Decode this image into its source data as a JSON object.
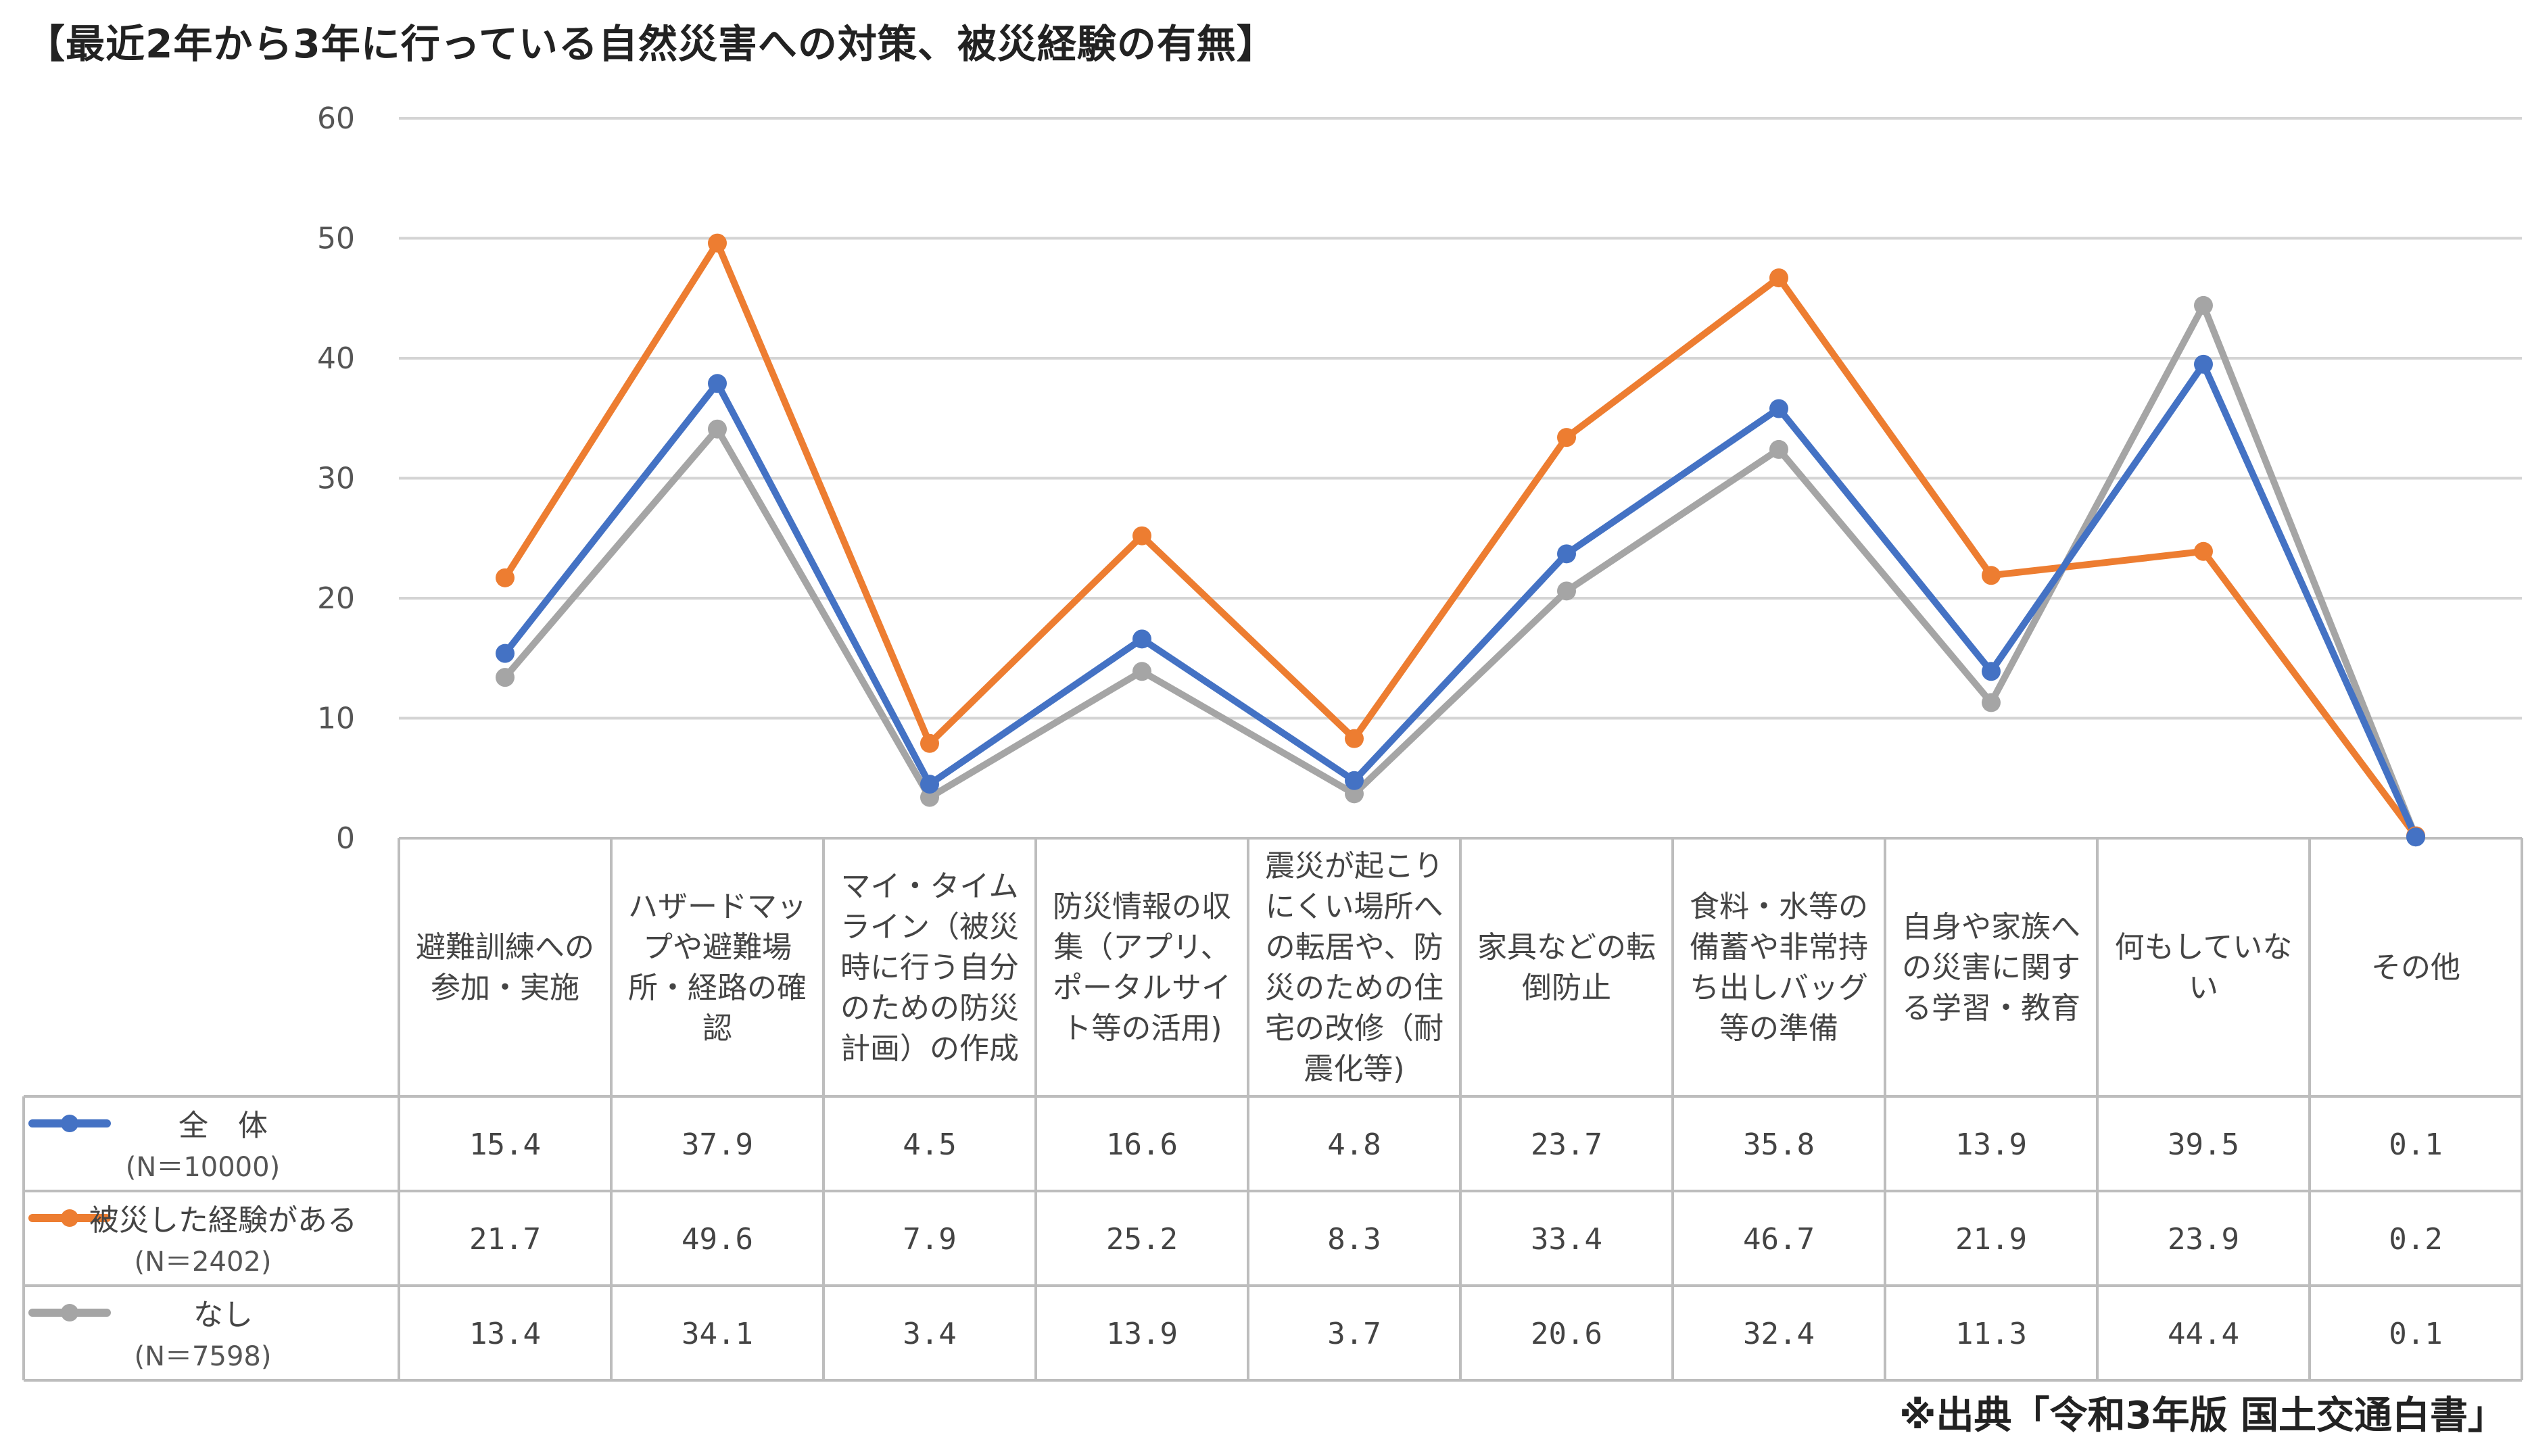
{
  "title": "【最近2年から3年に行っている自然災害への対策、被災経験の有無】",
  "source": "※出典「令和3年版 国土交通白書」",
  "chart_data": {
    "type": "line",
    "ylim": [
      0,
      60
    ],
    "yticks": [
      0,
      10,
      20,
      30,
      40,
      50,
      60
    ],
    "grid": true,
    "categories": [
      [
        "避難訓練への",
        "参加・実施"
      ],
      [
        "ハザードマッ",
        "プや避難場",
        "所・経路の確",
        "認"
      ],
      [
        "マイ・タイム",
        "ライン（被災",
        "時に行う自分",
        "のための防災",
        "計画）の作成"
      ],
      [
        "防災情報の収",
        "集（アプリ、",
        "ポータルサイ",
        "ト等の活用)"
      ],
      [
        "震災が起こり",
        "にくい場所へ",
        "の転居や、防",
        "災のための住",
        "宅の改修（耐",
        "震化等)"
      ],
      [
        "家具などの転",
        "倒防止"
      ],
      [
        "食料・水等の",
        "備蓄や非常持",
        "ち出しバッグ",
        "等の準備"
      ],
      [
        "自身や家族へ",
        "の災害に関す",
        "る学習・教育"
      ],
      [
        "何もしていな",
        "い"
      ],
      [
        "その他"
      ]
    ],
    "series": [
      {
        "name": "全　体",
        "sub": "(N＝10000)",
        "color": "#4472c4",
        "values": [
          15.4,
          37.9,
          4.5,
          16.6,
          4.8,
          23.7,
          35.8,
          13.9,
          39.5,
          0.1
        ],
        "labels": [
          "15.4",
          "37.9",
          "4.5",
          "16.6",
          "4.8",
          "23.7",
          "35.8",
          "13.9",
          "39.5",
          "0.1"
        ]
      },
      {
        "name": "被災した経験がある",
        "sub": "(N＝2402)",
        "color": "#ed7d31",
        "values": [
          21.7,
          49.6,
          7.9,
          25.2,
          8.3,
          33.4,
          46.7,
          21.9,
          23.9,
          0.2
        ],
        "labels": [
          "21.7",
          "49.6",
          "7.9",
          "25.2",
          "8.3",
          "33.4",
          "46.7",
          "21.9",
          "23.9",
          "0.2"
        ]
      },
      {
        "name": "なし",
        "sub": "(N＝7598)",
        "color": "#a5a5a5",
        "values": [
          13.4,
          34.1,
          3.4,
          13.9,
          3.7,
          20.6,
          32.4,
          11.3,
          44.4,
          0.1
        ],
        "labels": [
          "13.4",
          "34.1",
          "3.4",
          "13.9",
          "3.7",
          "20.6",
          "32.4",
          "11.3",
          "44.4",
          "0.1"
        ]
      }
    ]
  }
}
